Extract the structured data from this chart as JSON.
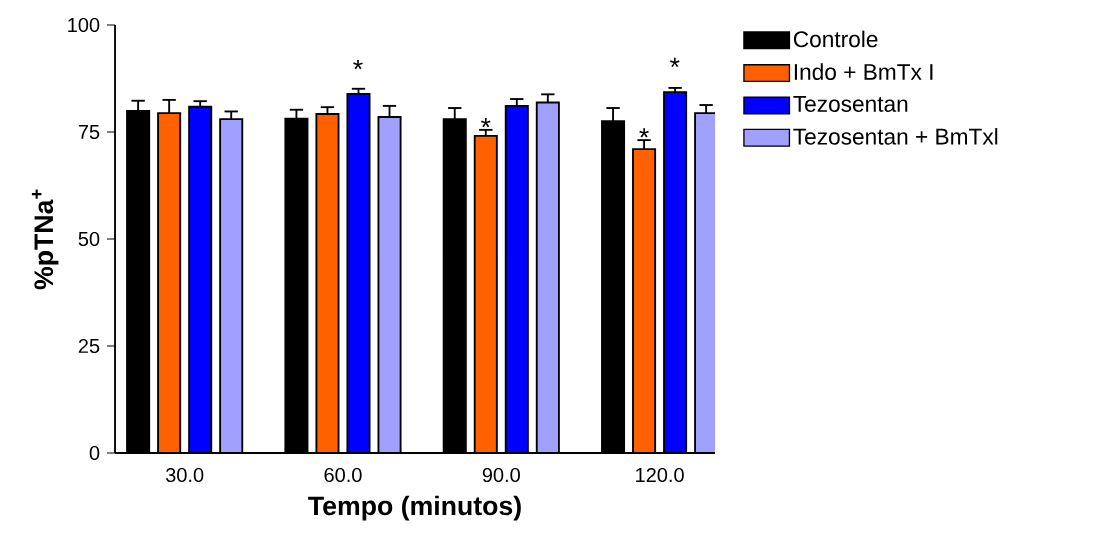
{
  "chart_data": {
    "type": "bar",
    "xlabel": "Tempo (minutos)",
    "ylabel": "%pTNa$^{+}$",
    "categories": [
      "30.0",
      "60.0",
      "90.0",
      "120.0"
    ],
    "series": [
      {
        "name": "Controle",
        "color": "#000000",
        "values": [
          79.9,
          78.1,
          78.0,
          77.5
        ],
        "errors": [
          [
            79.9,
            82.3
          ],
          [
            78.1,
            80.2
          ],
          [
            78.0,
            80.6
          ],
          [
            77.5,
            80.6
          ]
        ]
      },
      {
        "name": "Indo + BmTx I",
        "color": "#ff6000",
        "values": [
          79.4,
          79.2,
          74.1,
          71.0
        ],
        "errors": [
          [
            79.4,
            82.5
          ],
          [
            79.2,
            80.8
          ],
          [
            74.1,
            75.5
          ],
          [
            71.0,
            73.1
          ]
        ]
      },
      {
        "name": "Tezosentan",
        "color": "#0000ff",
        "values": [
          80.9,
          83.9,
          81.1,
          84.3
        ],
        "errors": [
          [
            80.9,
            82.2
          ],
          [
            83.9,
            85.1
          ],
          [
            81.1,
            82.7
          ],
          [
            84.3,
            85.3
          ]
        ]
      },
      {
        "name": "Tezosentan + BmTxl",
        "color": "#a0a0ff",
        "values": [
          78.0,
          78.5,
          81.9,
          79.4
        ],
        "errors": [
          [
            78.0,
            79.8
          ],
          [
            78.5,
            81.1
          ],
          [
            81.9,
            83.8
          ],
          [
            79.4,
            81.3
          ]
        ]
      }
    ],
    "annotations": [
      "*",
      {
        "text": "*",
        "x": "90.0",
        "y": 75.5
      },
      {
        "text": "*",
        "x": "120.0",
        "y": 73.1
      },
      "*"
    ],
    "ylim": [
      0,
      100
    ],
    "yticks": [
      0,
      25,
      50,
      75,
      100
    ],
    "grid": false,
    "legend": "top right"
  }
}
